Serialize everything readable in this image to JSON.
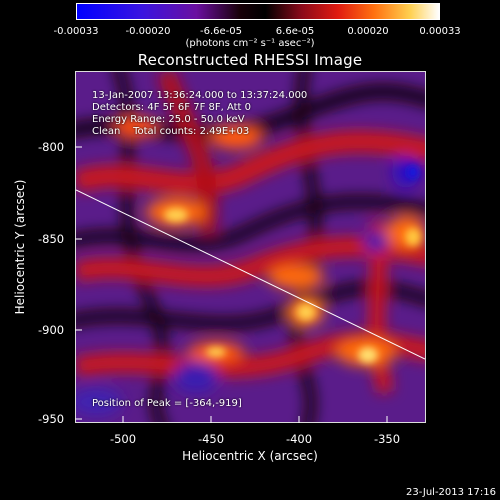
{
  "colorbar": {
    "tick_labels": [
      "-0.00033",
      "-0.00020",
      "-6.6e-05",
      "6.6e-05",
      "0.00020",
      "0.00033"
    ],
    "units": "(photons cm⁻² s⁻¹ asec⁻²)"
  },
  "title": "Reconstructed RHESSI Image",
  "info": {
    "time_range": "13-Jan-2007 13:36:24.000 to 13:37:24.000",
    "detectors": "Detectors: 4F 5F 6F 7F 8F, Att 0",
    "energy": "Energy Range: 25.0 - 50.0 keV",
    "clean": "Clean    Total counts: 2.49E+03",
    "peak": "Position of Peak = [-364,-919]"
  },
  "x_axis": {
    "label": "Heliocentric X (arcsec)",
    "ticks": [
      "-500",
      "-450",
      "-400",
      "-350"
    ]
  },
  "y_axis": {
    "label": "Heliocentric Y (arcsec)",
    "ticks": [
      "-800",
      "-850",
      "-900",
      "-950"
    ]
  },
  "footer": {
    "date": "23-Jul-2013 17:16"
  },
  "colors": {
    "background": "#000000",
    "limb_line": "#ffffff"
  }
}
